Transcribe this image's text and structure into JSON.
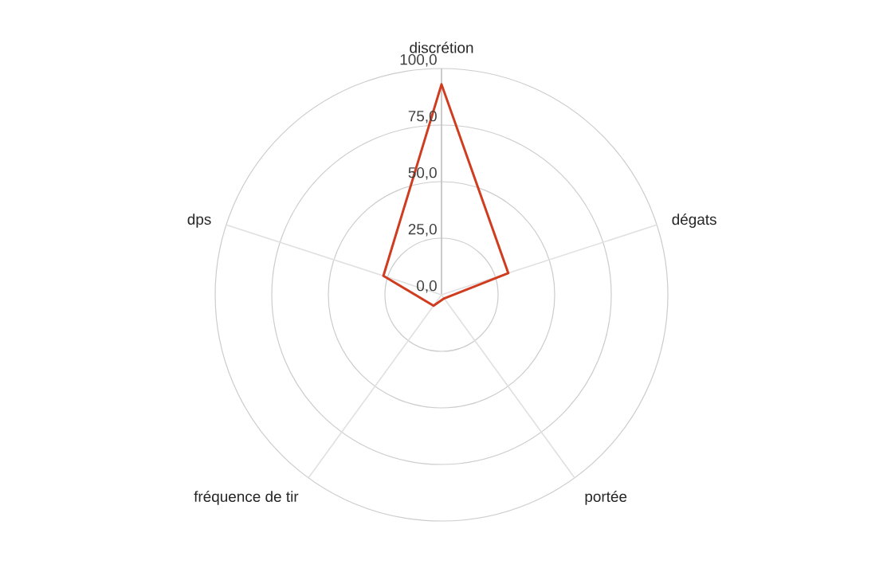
{
  "chart_data": {
    "type": "radar",
    "categories": [
      "discrétion",
      "dégats",
      "portée",
      "fréquence de tir",
      "dps"
    ],
    "series": [
      {
        "color": "#d03c1f",
        "values": [
          93,
          31,
          2,
          6,
          27
        ]
      }
    ],
    "ylim": [
      0,
      100
    ],
    "yticks": [
      {
        "value": 0,
        "label": "0,0"
      },
      {
        "value": 25,
        "label": "25,0"
      },
      {
        "value": 50,
        "label": "50,0"
      },
      {
        "value": 75,
        "label": "75,0"
      },
      {
        "value": 100,
        "label": "100,0"
      }
    ],
    "grid": true
  }
}
